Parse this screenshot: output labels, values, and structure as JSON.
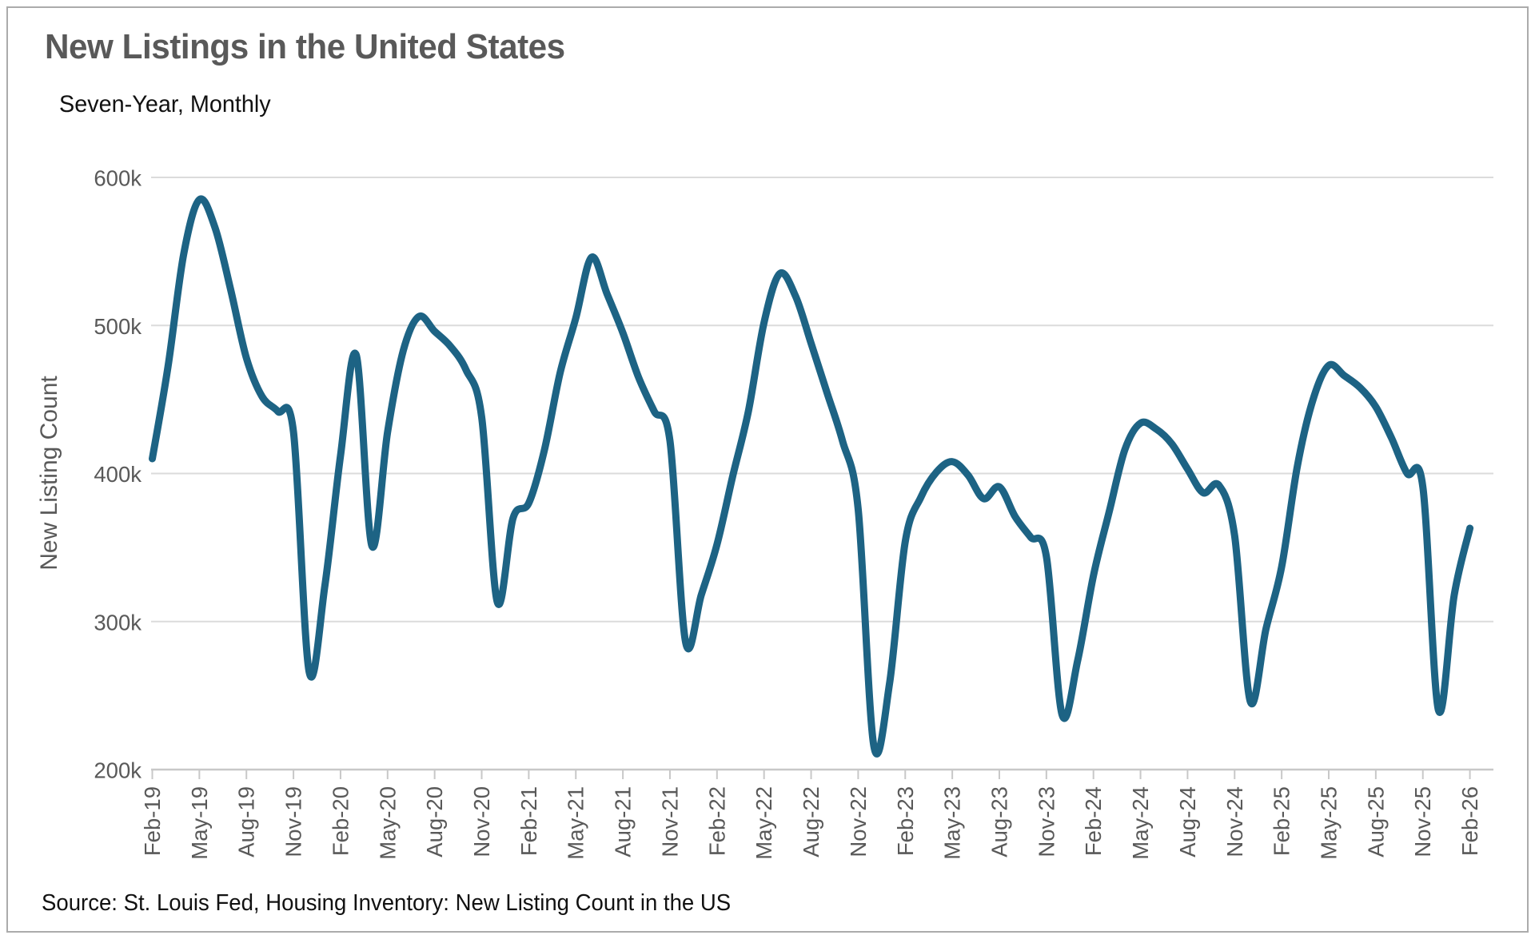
{
  "title": "New Listings in the United States",
  "subtitle": "Seven-Year, Monthly",
  "source": "Source: St. Louis Fed, Housing Inventory: New Listing Count in the US",
  "y_axis": {
    "title": "New Listing Count",
    "tick_labels": [
      "600k",
      "500k",
      "400k",
      "300k",
      "200k"
    ],
    "tick_values_thousands": [
      600,
      500,
      400,
      300,
      200
    ]
  },
  "x_axis": {
    "tick_labels": [
      "Feb-19",
      "May-19",
      "Aug-19",
      "Nov-19",
      "Feb-20",
      "May-20",
      "Aug-20",
      "Nov-20",
      "Feb-21",
      "May-21",
      "Aug-21",
      "Nov-21",
      "Feb-22",
      "May-22",
      "Aug-22",
      "Nov-22",
      "Feb-23",
      "May-23",
      "Aug-23",
      "Nov-23",
      "Feb-24",
      "May-24",
      "Aug-24",
      "Nov-24",
      "Feb-25",
      "May-25",
      "Aug-25",
      "Nov-25",
      "Feb-26"
    ]
  },
  "chart_data": {
    "type": "line",
    "title": "New Listings in the United States",
    "subtitle": "Seven-Year, Monthly",
    "xlabel": "",
    "ylabel": "New Listing Count",
    "unit": "thousands of listings",
    "ylim_thousands": [
      200,
      600
    ],
    "grid": true,
    "legend": "none",
    "line_color": "#1d6384",
    "grid_color": "#dbdbdb",
    "axis_color": "#c8c8c8",
    "text_color": "#595959",
    "x": [
      "Feb-19",
      "Mar-19",
      "Apr-19",
      "May-19",
      "Jun-19",
      "Jul-19",
      "Aug-19",
      "Sep-19",
      "Oct-19",
      "Nov-19",
      "Dec-19",
      "Jan-20",
      "Feb-20",
      "Mar-20",
      "Apr-20",
      "May-20",
      "Jun-20",
      "Jul-20",
      "Aug-20",
      "Sep-20",
      "Oct-20",
      "Nov-20",
      "Dec-20",
      "Jan-21",
      "Feb-21",
      "Mar-21",
      "Apr-21",
      "May-21",
      "Jun-21",
      "Jul-21",
      "Aug-21",
      "Sep-21",
      "Oct-21",
      "Nov-21",
      "Dec-21",
      "Jan-22",
      "Feb-22",
      "Mar-22",
      "Apr-22",
      "May-22",
      "Jun-22",
      "Jul-22",
      "Aug-22",
      "Sep-22",
      "Oct-22",
      "Nov-22",
      "Dec-22",
      "Jan-23",
      "Feb-23",
      "Mar-23",
      "Apr-23",
      "May-23",
      "Jun-23",
      "Jul-23",
      "Aug-23",
      "Sep-23",
      "Oct-23",
      "Nov-23",
      "Dec-23",
      "Jan-24",
      "Feb-24",
      "Mar-24",
      "Apr-24",
      "May-24",
      "Jun-24",
      "Jul-24",
      "Aug-24",
      "Sep-24",
      "Oct-24",
      "Nov-24",
      "Dec-24",
      "Jan-25",
      "Feb-25",
      "Mar-25",
      "Apr-25",
      "May-25",
      "Jun-25",
      "Jul-25",
      "Aug-25",
      "Sep-25",
      "Oct-25",
      "Nov-25",
      "Dec-25",
      "Jan-26",
      "Feb-26"
    ],
    "values_thousands": [
      410,
      472,
      548,
      585,
      566,
      524,
      478,
      452,
      442,
      428,
      266,
      324,
      412,
      480,
      351,
      428,
      483,
      506,
      496,
      486,
      470,
      438,
      313,
      370,
      380,
      416,
      468,
      505,
      546,
      521,
      495,
      465,
      442,
      422,
      286,
      318,
      352,
      398,
      442,
      502,
      535,
      520,
      488,
      455,
      422,
      376,
      216,
      258,
      354,
      384,
      401,
      408,
      399,
      383,
      391,
      371,
      357,
      344,
      237,
      274,
      331,
      374,
      416,
      434,
      430,
      420,
      403,
      387,
      392,
      358,
      246,
      295,
      337,
      405,
      450,
      473,
      466,
      458,
      445,
      424,
      400,
      391,
      240,
      318,
      363
    ],
    "x_tick_labels": [
      "Feb-19",
      "May-19",
      "Aug-19",
      "Nov-19",
      "Feb-20",
      "May-20",
      "Aug-20",
      "Nov-20",
      "Feb-21",
      "May-21",
      "Aug-21",
      "Nov-21",
      "Feb-22",
      "May-22",
      "Aug-22",
      "Nov-22",
      "Feb-23",
      "May-23",
      "Aug-23",
      "Nov-23",
      "Feb-24",
      "May-24",
      "Aug-24",
      "Nov-24",
      "Feb-25",
      "May-25",
      "Aug-25",
      "Nov-25",
      "Feb-26"
    ]
  }
}
